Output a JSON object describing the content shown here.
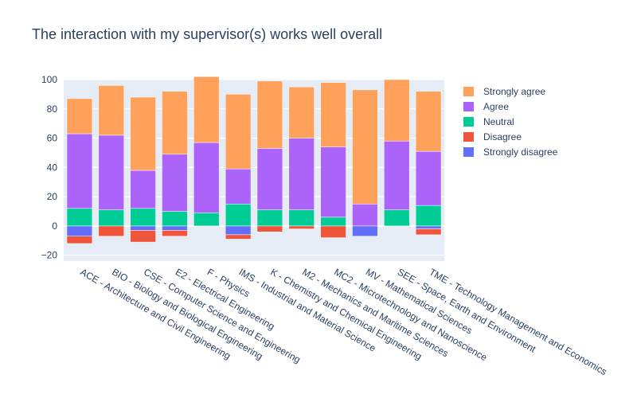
{
  "chart_data": {
    "type": "bar",
    "barmode": "relative",
    "title": "The interaction with my supervisor(s) works well overall",
    "xlabel": "",
    "ylabel": "",
    "ylim": [
      -24,
      100
    ],
    "yticks": [
      -20,
      0,
      20,
      40,
      60,
      80,
      100
    ],
    "grid": true,
    "legend_position": "right",
    "categories": [
      "ACE - Architecture and Civil Engineering",
      "BIO - Biology and Biological Engineering",
      "CSE - Computer Science and Engineering",
      "E2 - Electrical Engineering",
      "F - Physics",
      "IMS - Industrial and Material Science",
      "K - Chemistry and Chemical Engineering",
      "M2 - Mechanics and Maritime Sciences",
      "MC2 - Microtechnology and Nanoscience",
      "MV - Mathematical Sciences",
      "SEE - Space, Earth and Environment",
      "TME - Technology Management and Economics"
    ],
    "series": [
      {
        "name": "Strongly disagree",
        "color": "#636efa",
        "values": [
          -7,
          0,
          -3,
          -3,
          0,
          -6,
          0,
          0,
          0,
          -7,
          0,
          -2
        ]
      },
      {
        "name": "Disagree",
        "color": "#ef553b",
        "values": [
          -5,
          -7,
          -8,
          -4,
          0,
          -3,
          -4,
          -2,
          -8,
          0,
          0,
          -4
        ]
      },
      {
        "name": "Neutral",
        "color": "#00cc96",
        "values": [
          12,
          11,
          12,
          10,
          9,
          15,
          11,
          11,
          6,
          0,
          11,
          14
        ]
      },
      {
        "name": "Agree",
        "color": "#ab63fa",
        "values": [
          51,
          51,
          26,
          39,
          48,
          24,
          42,
          49,
          48,
          15,
          47,
          37
        ]
      },
      {
        "name": "Strongly agree",
        "color": "#ffa15a",
        "values": [
          24,
          34,
          50,
          43,
          45,
          51,
          46,
          35,
          44,
          78,
          42,
          41
        ]
      }
    ]
  }
}
